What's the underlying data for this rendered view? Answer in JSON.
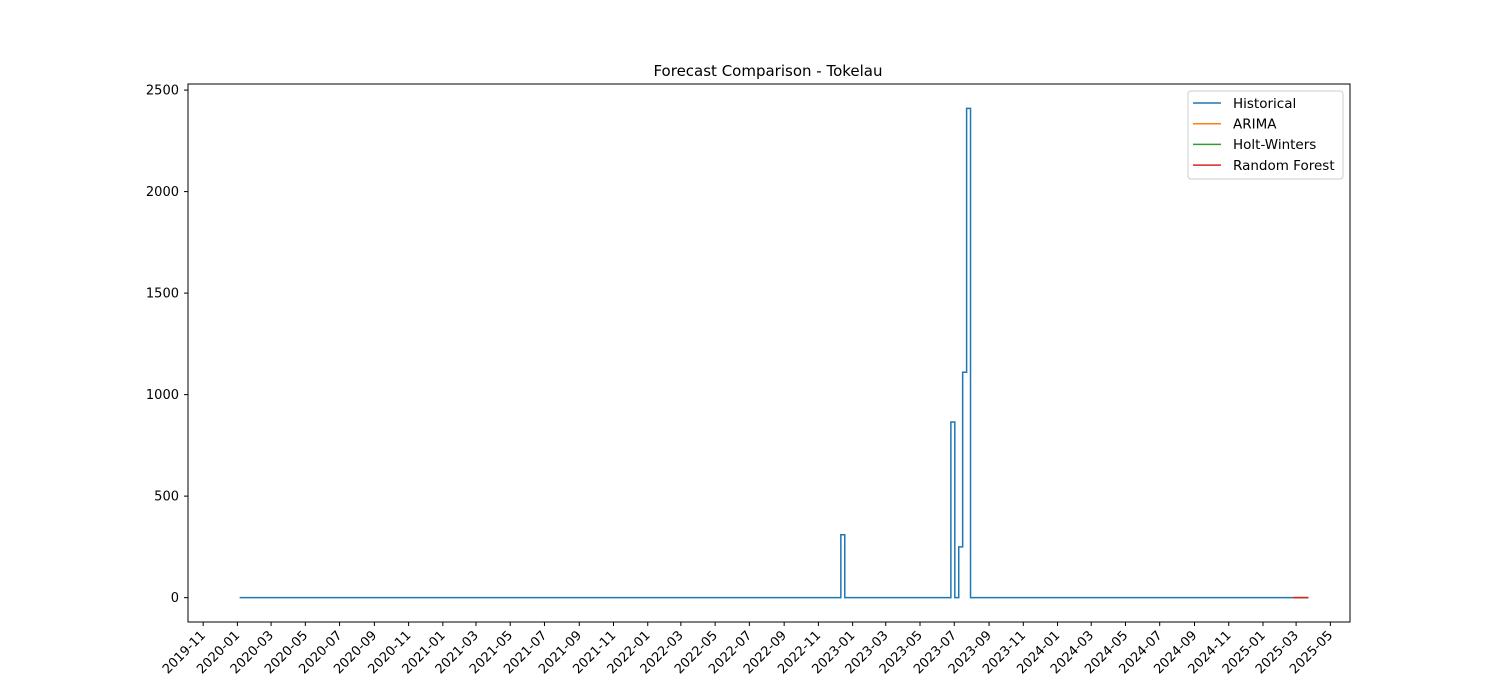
{
  "chart_data": {
    "type": "line",
    "title": "Forecast Comparison - Tokelau",
    "xlabel": "",
    "ylabel": "",
    "xlim": [
      "2019-10-05",
      "2025-06-05"
    ],
    "ylim": [
      -120,
      2530
    ],
    "grid": false,
    "legend_position": "upper-right",
    "x_ticks": [
      "2019-11",
      "2020-01",
      "2020-03",
      "2020-05",
      "2020-07",
      "2020-09",
      "2020-11",
      "2021-01",
      "2021-03",
      "2021-05",
      "2021-07",
      "2021-09",
      "2021-11",
      "2022-01",
      "2022-03",
      "2022-05",
      "2022-07",
      "2022-09",
      "2022-11",
      "2023-01",
      "2023-03",
      "2023-05",
      "2023-07",
      "2023-09",
      "2023-11",
      "2024-01",
      "2024-03",
      "2024-05",
      "2024-07",
      "2024-09",
      "2024-11",
      "2025-01",
      "2025-03",
      "2025-05"
    ],
    "y_ticks": [
      0,
      500,
      1000,
      1500,
      2000,
      2500
    ],
    "series": [
      {
        "name": "Historical",
        "color": "#1f77b4",
        "step": true,
        "points": [
          [
            "2020-01-05",
            0
          ],
          [
            "2022-12-11",
            0
          ],
          [
            "2022-12-11",
            310
          ],
          [
            "2022-12-18",
            310
          ],
          [
            "2022-12-18",
            0
          ],
          [
            "2023-06-25",
            0
          ],
          [
            "2023-06-25",
            865
          ],
          [
            "2023-07-02",
            865
          ],
          [
            "2023-07-02",
            0
          ],
          [
            "2023-07-09",
            0
          ],
          [
            "2023-07-09",
            250
          ],
          [
            "2023-07-16",
            250
          ],
          [
            "2023-07-16",
            1110
          ],
          [
            "2023-07-23",
            1110
          ],
          [
            "2023-07-23",
            2410
          ],
          [
            "2023-07-30",
            2410
          ],
          [
            "2023-07-30",
            0
          ],
          [
            "2025-02-23",
            0
          ]
        ]
      },
      {
        "name": "ARIMA",
        "color": "#ff7f0e",
        "points": [
          [
            "2025-02-23",
            0
          ],
          [
            "2025-03-23",
            0
          ]
        ]
      },
      {
        "name": "Holt-Winters",
        "color": "#2ca02c",
        "points": [
          [
            "2025-02-23",
            0
          ],
          [
            "2025-03-23",
            0
          ]
        ]
      },
      {
        "name": "Random Forest",
        "color": "#d62728",
        "points": [
          [
            "2025-02-23",
            0
          ],
          [
            "2025-03-23",
            0
          ]
        ]
      }
    ]
  }
}
